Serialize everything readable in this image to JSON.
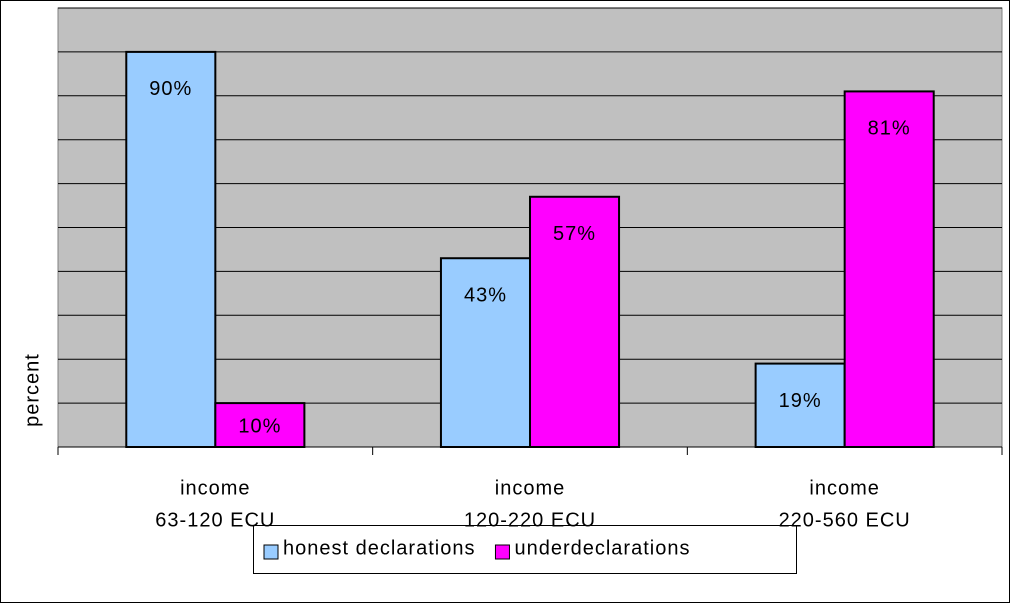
{
  "chart_data": {
    "type": "bar",
    "y_label": "percent",
    "categories": [
      [
        "income",
        "63-120 ECU"
      ],
      [
        "income",
        "120-220 ECU"
      ],
      [
        "income",
        "220-560 ECU"
      ]
    ],
    "series": [
      {
        "name": "honest declarations",
        "color": "#99ccff",
        "values": [
          90,
          43,
          19
        ],
        "value_labels": [
          "90%",
          "43%",
          "19%"
        ]
      },
      {
        "name": "underdeclarations",
        "color": "#ff00ff",
        "values": [
          10,
          57,
          81
        ],
        "value_labels": [
          "10%",
          "57%",
          "81%"
        ]
      }
    ],
    "ylim": [
      0,
      100
    ],
    "yticks": [
      0,
      10,
      20,
      30,
      40,
      50,
      60,
      70,
      80,
      90,
      100
    ],
    "grid": true,
    "legend": "bottom"
  }
}
